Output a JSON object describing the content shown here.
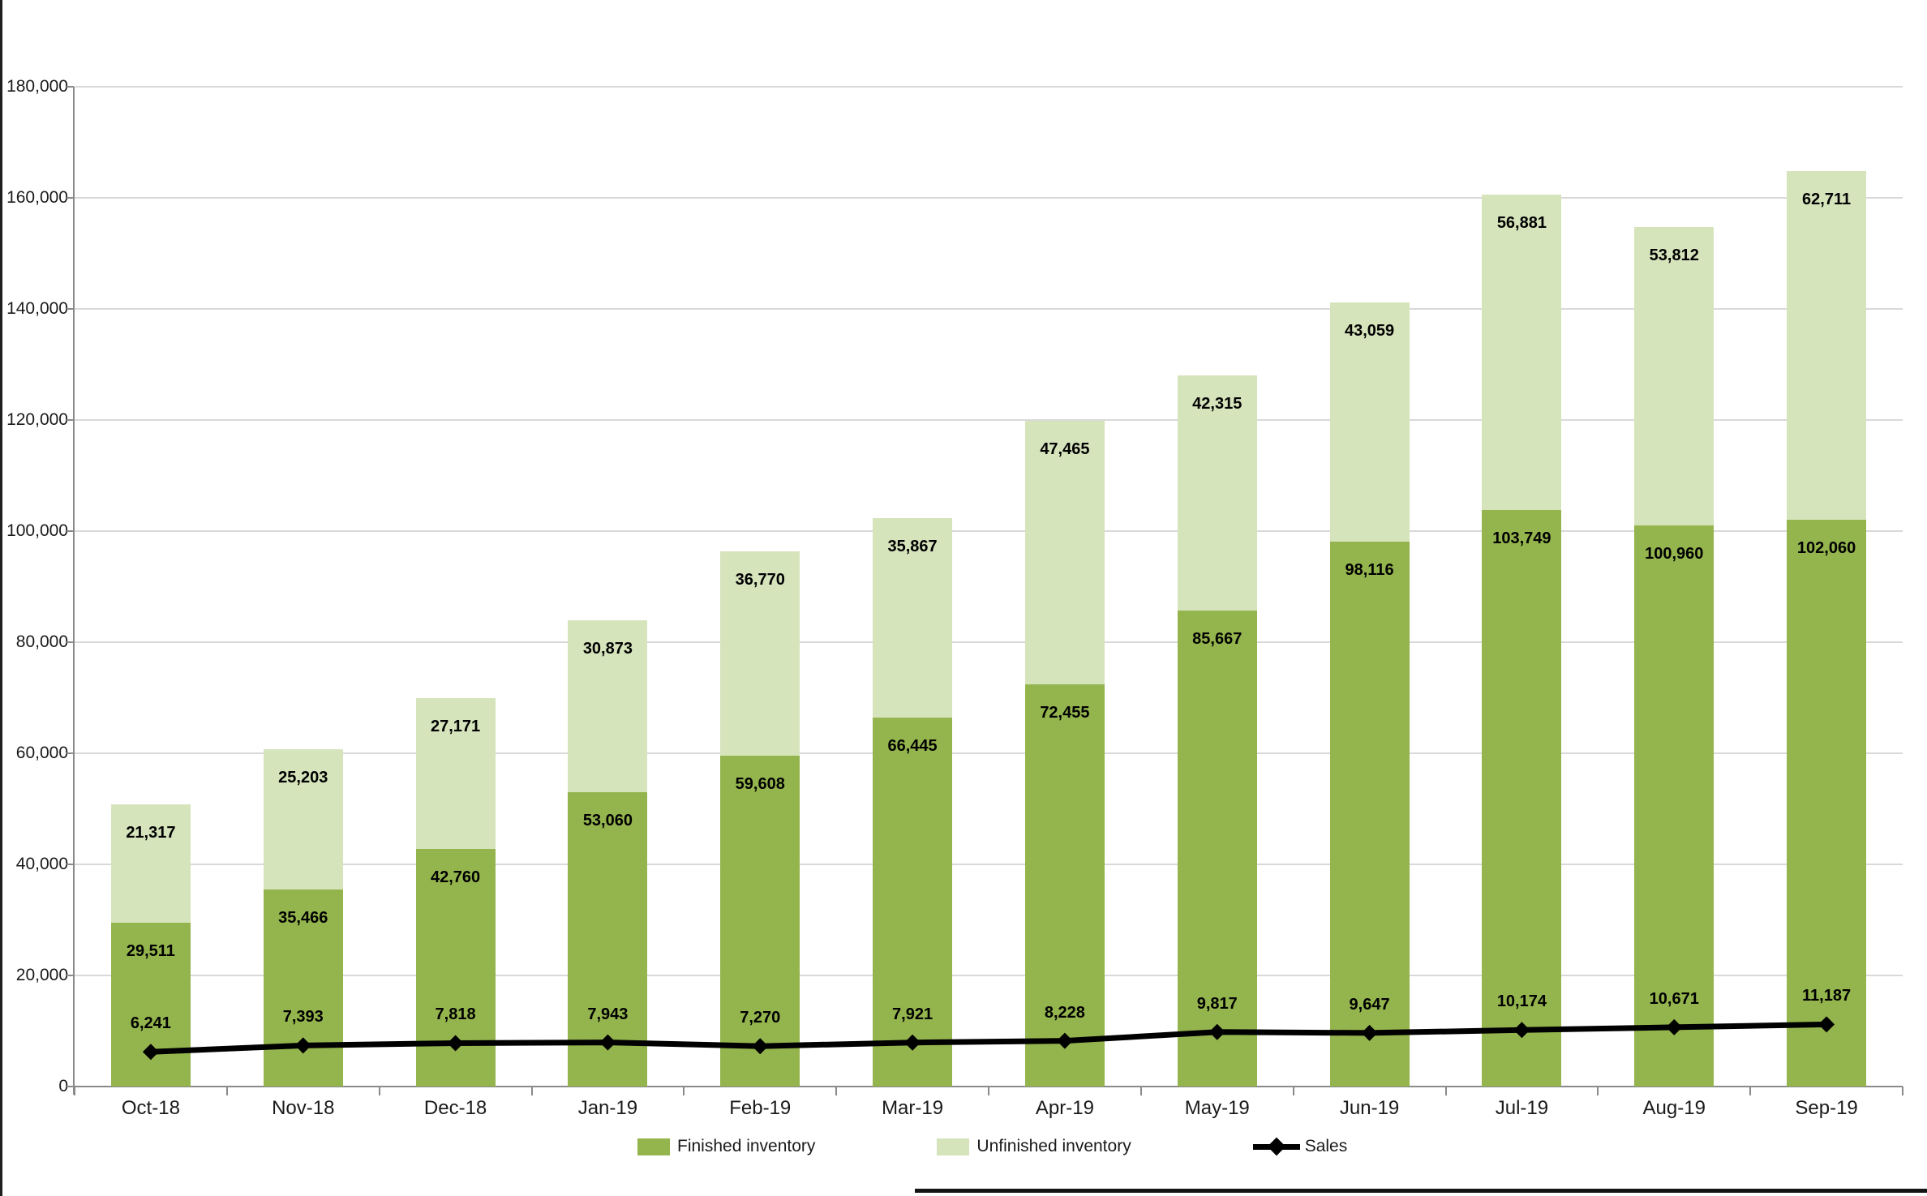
{
  "chart_data": {
    "type": "bar",
    "subtype": "stacked-bars-with-line-overlay",
    "title": "",
    "xlabel": "",
    "ylabel": "",
    "categories": [
      "Oct-18",
      "Nov-18",
      "Dec-18",
      "Jan-19",
      "Feb-19",
      "Mar-19",
      "Apr-19",
      "May-19",
      "Jun-19",
      "Jul-19",
      "Aug-19",
      "Sep-19"
    ],
    "series": [
      {
        "name": "Finished inventory",
        "type": "bar",
        "color": "#94B54D",
        "values": [
          29511,
          35466,
          42760,
          53060,
          59608,
          66445,
          72455,
          85667,
          98116,
          103749,
          100960,
          102060
        ]
      },
      {
        "name": "Unfinished inventory",
        "type": "bar",
        "color": "#D6E4BC",
        "values": [
          21317,
          25203,
          27171,
          30873,
          36770,
          35867,
          47465,
          42315,
          43059,
          56881,
          53812,
          62711
        ]
      },
      {
        "name": "Sales",
        "type": "line",
        "color": "#000000",
        "marker": "diamond",
        "values": [
          6241,
          7393,
          7818,
          7943,
          7270,
          7921,
          8228,
          9817,
          9647,
          10174,
          10671,
          11187
        ]
      }
    ],
    "ylim": [
      0,
      180000
    ],
    "ytick_interval": 20000,
    "ytick_labels": [
      "0",
      "20,000",
      "40,000",
      "60,000",
      "80,000",
      "100,000",
      "120,000",
      "140,000",
      "160,000",
      "180,000"
    ],
    "grid": true,
    "gridline_color": "#D9D9D9",
    "axis_color": "#8A8A8A",
    "legend_position": "bottom",
    "data_labels_visible": true
  }
}
